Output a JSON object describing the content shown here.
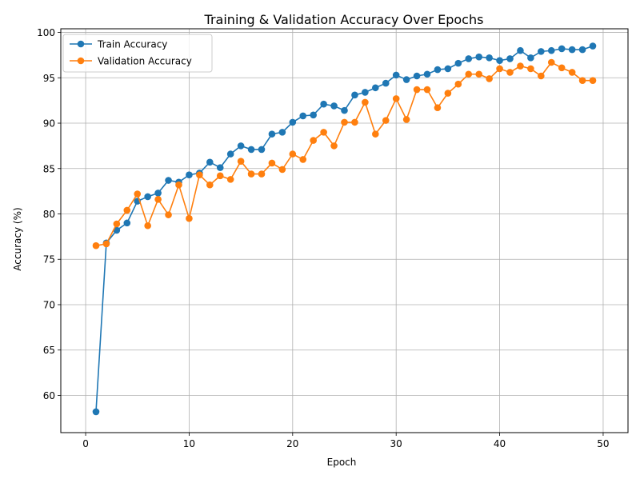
{
  "chart_data": {
    "type": "line",
    "title": "Training & Validation Accuracy Over Epochs",
    "xlabel": "Epoch",
    "ylabel": "Accuracy (%)",
    "xlim": [
      -2.4,
      52.4
    ],
    "ylim": [
      55.9,
      100.4
    ],
    "xticks": [
      0,
      10,
      20,
      30,
      40,
      50
    ],
    "yticks": [
      60,
      65,
      70,
      75,
      80,
      85,
      90,
      95,
      100
    ],
    "grid": true,
    "legend_position": "top-left",
    "x": [
      1,
      2,
      3,
      4,
      5,
      6,
      7,
      8,
      9,
      10,
      11,
      12,
      13,
      14,
      15,
      16,
      17,
      18,
      19,
      20,
      21,
      22,
      23,
      24,
      25,
      26,
      27,
      28,
      29,
      30,
      31,
      32,
      33,
      34,
      35,
      36,
      37,
      38,
      39,
      40,
      41,
      42,
      43,
      44,
      45,
      46,
      47,
      48,
      49
    ],
    "series": [
      {
        "name": "Train Accuracy",
        "color": "#1f77b4",
        "values": [
          58.2,
          76.8,
          78.2,
          79.0,
          81.4,
          81.9,
          82.3,
          83.7,
          83.5,
          84.3,
          84.5,
          85.7,
          85.1,
          86.6,
          87.5,
          87.1,
          87.1,
          88.8,
          89.0,
          90.1,
          90.8,
          90.9,
          92.1,
          91.9,
          91.4,
          93.1,
          93.4,
          93.9,
          94.4,
          95.3,
          94.8,
          95.2,
          95.4,
          95.9,
          96.0,
          96.6,
          97.1,
          97.3,
          97.2,
          96.9,
          97.1,
          98.0,
          97.2,
          97.9,
          98.0,
          98.2,
          98.1,
          98.1,
          98.5
        ]
      },
      {
        "name": "Validation Accuracy",
        "color": "#ff7f0e",
        "values": [
          76.5,
          76.7,
          78.9,
          80.4,
          82.2,
          78.7,
          81.6,
          79.9,
          83.2,
          79.5,
          84.3,
          83.2,
          84.2,
          83.8,
          85.8,
          84.4,
          84.4,
          85.6,
          84.9,
          86.6,
          86.0,
          88.1,
          89.0,
          87.5,
          90.1,
          90.1,
          92.3,
          88.8,
          90.3,
          92.7,
          90.4,
          93.7,
          93.7,
          91.7,
          93.3,
          94.3,
          95.4,
          95.4,
          94.9,
          96.0,
          95.6,
          96.3,
          96.0,
          95.2,
          96.7,
          96.1,
          95.6,
          94.7,
          94.7
        ]
      }
    ]
  }
}
